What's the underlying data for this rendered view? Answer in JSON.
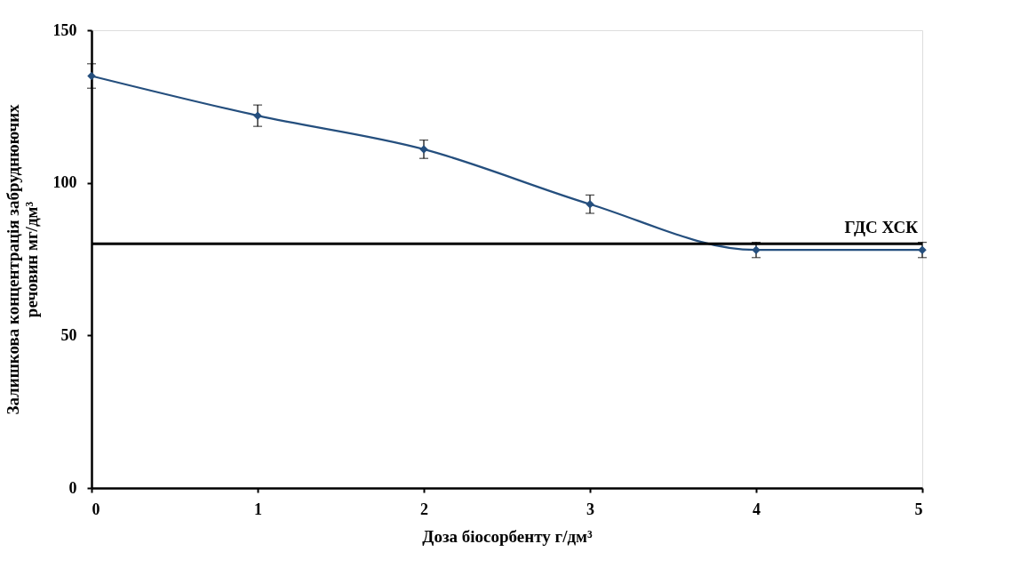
{
  "chart_data": {
    "type": "line",
    "xlabel": "Доза біосорбенту г/дм³",
    "ylabel": "Залишкова концентрація забруднюючих\nречовин мг/дм³",
    "x": [
      0,
      1,
      2,
      3,
      4,
      5
    ],
    "series": [
      {
        "color": "#254f7e",
        "values": [
          135,
          122,
          111,
          93,
          78,
          78
        ],
        "errors": [
          4,
          3.5,
          3,
          3,
          2.5,
          2.5
        ]
      }
    ],
    "xlim": [
      0,
      5
    ],
    "xticks": [
      0,
      1,
      2,
      3,
      4,
      5
    ],
    "ylim": [
      0,
      150
    ],
    "yticks": [
      0,
      50,
      100,
      150
    ],
    "ref_lines": [
      {
        "axis": "y",
        "value": 80,
        "label": "ГДС  ХСК",
        "color": "#000000"
      }
    ],
    "marker": "diamond",
    "line_style": "solid",
    "grid": false
  }
}
